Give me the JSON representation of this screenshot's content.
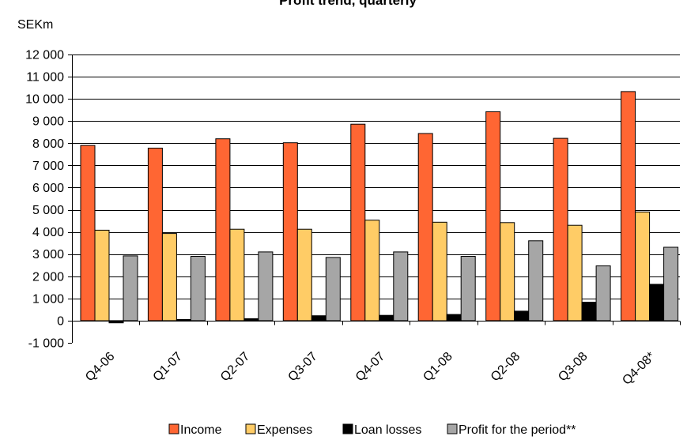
{
  "chart_data": {
    "type": "bar",
    "title": "Profit trend, quarterly",
    "unit_label": "SEKm",
    "categories": [
      "Q4-06",
      "Q1-07",
      "Q2-07",
      "Q3-07",
      "Q4-07",
      "Q1-08",
      "Q2-08",
      "Q3-08",
      "Q4-08*"
    ],
    "series": [
      {
        "name": "Income",
        "color": "#FF6633",
        "values": [
          7900,
          7780,
          8200,
          8020,
          8860,
          8440,
          9420,
          8220,
          10330
        ]
      },
      {
        "name": "Expenses",
        "color": "#FFCC66",
        "values": [
          4080,
          3930,
          4120,
          4120,
          4530,
          4440,
          4420,
          4300,
          4900
        ]
      },
      {
        "name": "Loan losses",
        "color": "#000000",
        "values": [
          -100,
          50,
          90,
          220,
          240,
          280,
          430,
          830,
          1640
        ]
      },
      {
        "name": "Profit for the period**",
        "color": "#A6A6A6",
        "values": [
          2920,
          2900,
          3100,
          2850,
          3100,
          2900,
          3600,
          2470,
          3310
        ]
      }
    ],
    "ylim": [
      -1000,
      12000
    ],
    "yticks": [
      -1000,
      0,
      1000,
      2000,
      3000,
      4000,
      5000,
      6000,
      7000,
      8000,
      9000,
      10000,
      11000,
      12000
    ],
    "ytick_labels": [
      "-1 000",
      "0",
      "1 000",
      "2 000",
      "3 000",
      "4 000",
      "5 000",
      "6 000",
      "7 000",
      "8 000",
      "9 000",
      "10 000",
      "11 000",
      "12 000"
    ],
    "grid": true,
    "legend_position": "bottom"
  }
}
